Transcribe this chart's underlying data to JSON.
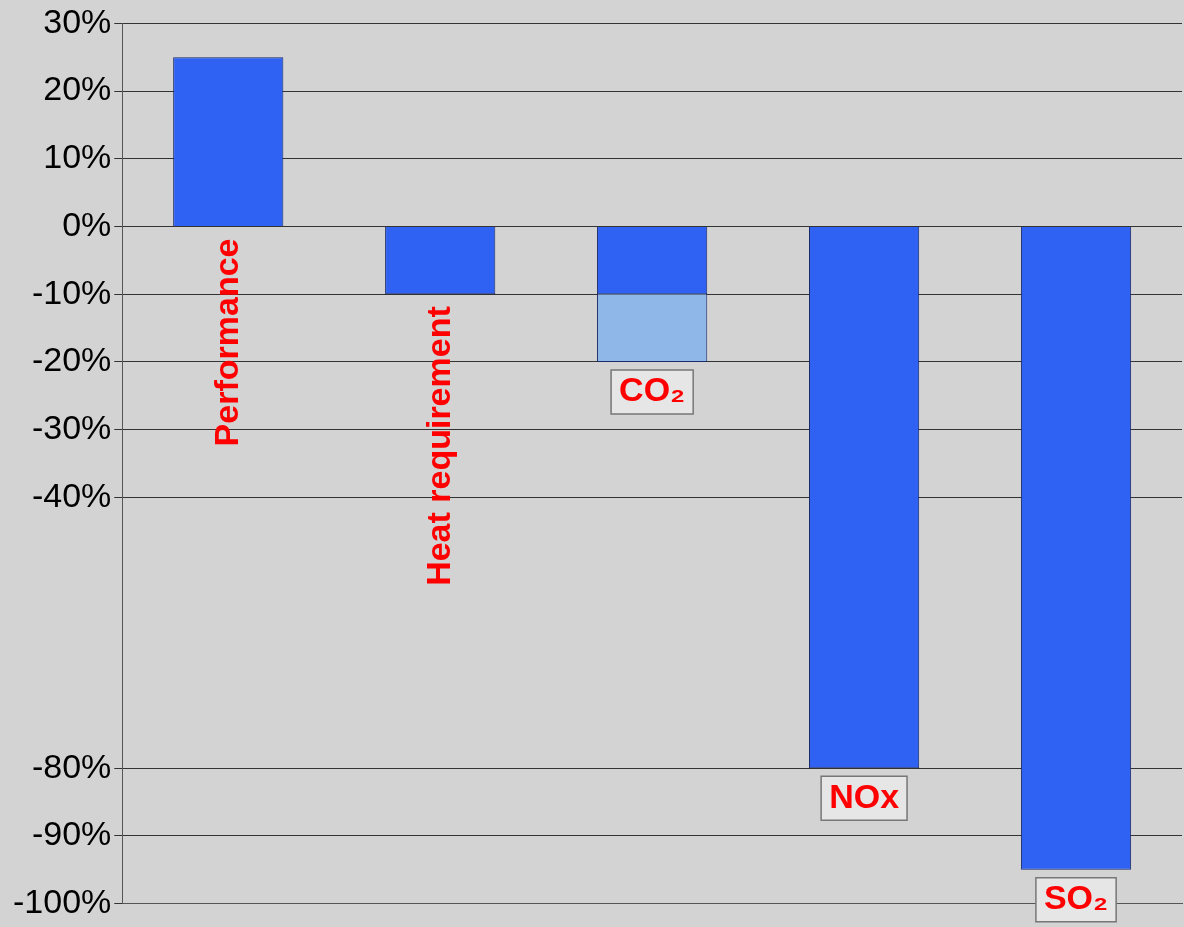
{
  "chart_data": {
    "type": "bar",
    "stacked": true,
    "categories": [
      "Performance",
      "Heat requirement",
      "CO₂",
      "NOx",
      "SO₂"
    ],
    "series": [
      {
        "color": "#2f62f2",
        "values": [
          25,
          -10,
          -10,
          -80,
          -95
        ]
      },
      {
        "color": "#8fb8e8",
        "values": [
          null,
          null,
          -10,
          null,
          null
        ]
      }
    ],
    "ylim": [
      -100,
      30
    ],
    "yticks": [
      {
        "value": 30,
        "label": "30%"
      },
      {
        "value": 20,
        "label": "20%"
      },
      {
        "value": 10,
        "label": "10%"
      },
      {
        "value": 0,
        "label": "0%"
      },
      {
        "value": -10,
        "label": "-10%"
      },
      {
        "value": -20,
        "label": "-20%"
      },
      {
        "value": -30,
        "label": "-30%"
      },
      {
        "value": -40,
        "label": "-40%"
      },
      {
        "value": -80,
        "label": "-80%"
      },
      {
        "value": -90,
        "label": "-90%"
      },
      {
        "value": -100,
        "label": "-100%"
      }
    ],
    "grid": "y",
    "legend": false
  }
}
